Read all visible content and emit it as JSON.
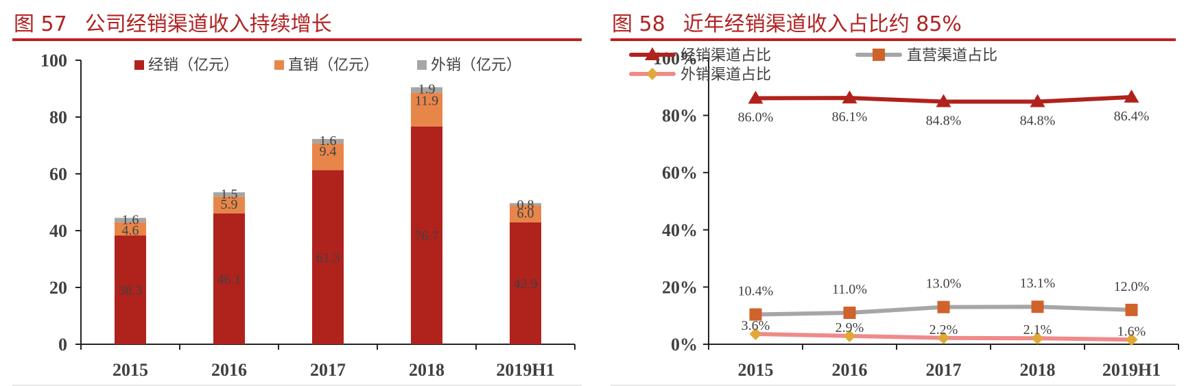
{
  "figures": {
    "left": {
      "number": "图 57",
      "title": "公司经销渠道收入持续增长"
    },
    "right": {
      "number": "图 58",
      "title": "近年经销渠道收入占比约 85%"
    }
  },
  "chart_data": [
    {
      "type": "bar",
      "stacked": true,
      "categories": [
        "2015",
        "2016",
        "2017",
        "2018",
        "2019H1"
      ],
      "series": [
        {
          "name": "经销（亿元）",
          "values": [
            38.3,
            46.1,
            61.3,
            76.7,
            42.9
          ],
          "labels": [
            "38.3",
            "46.1",
            "61.3",
            "76.7",
            "42.9"
          ],
          "color": "#b0221c"
        },
        {
          "name": "直销（亿元）",
          "values": [
            4.6,
            5.9,
            9.4,
            11.9,
            6.0
          ],
          "labels": [
            "4.6",
            "5.9",
            "9.4",
            "11.9",
            "6.0"
          ],
          "color": "#e8864a"
        },
        {
          "name": "外销（亿元）",
          "values": [
            1.6,
            1.5,
            1.6,
            1.9,
            0.8
          ],
          "labels": [
            "1.6",
            "1.5",
            "1.6",
            "1.9",
            "0.8"
          ],
          "color": "#a6a6a6"
        }
      ],
      "ylim": [
        0,
        100
      ],
      "yticks": [
        "0",
        "20",
        "40",
        "60",
        "80",
        "100"
      ],
      "legend_position": "top",
      "grid": false
    },
    {
      "type": "line",
      "categories": [
        "2015",
        "2016",
        "2017",
        "2018",
        "2019H1"
      ],
      "series": [
        {
          "name": "经销渠道占比",
          "values": [
            86.0,
            86.1,
            84.8,
            84.8,
            86.4
          ],
          "labels": [
            "86.0%",
            "86.1%",
            "84.8%",
            "84.8%",
            "86.4%"
          ],
          "color": "#b0221c",
          "marker": "triangle"
        },
        {
          "name": "直营渠道占比",
          "values": [
            10.4,
            11.0,
            13.0,
            13.1,
            12.0
          ],
          "labels": [
            "10.4%",
            "11.0%",
            "13.0%",
            "13.1%",
            "12.0%"
          ],
          "color": "#a6a6a6",
          "marker_color": "#d0622b",
          "marker": "square"
        },
        {
          "name": "外销渠道占比",
          "values": [
            3.6,
            2.9,
            2.2,
            2.1,
            1.6
          ],
          "labels": [
            "3.6%",
            "2.9%",
            "2.2%",
            "2.1%",
            "1.6%"
          ],
          "color": "#f08a8a",
          "marker_color": "#e0a83a",
          "marker": "diamond"
        }
      ],
      "ylim": [
        0,
        100
      ],
      "yticks": [
        "0%",
        "20%",
        "40%",
        "60%",
        "80%",
        "100%"
      ],
      "legend_position": "top",
      "grid": false
    }
  ]
}
